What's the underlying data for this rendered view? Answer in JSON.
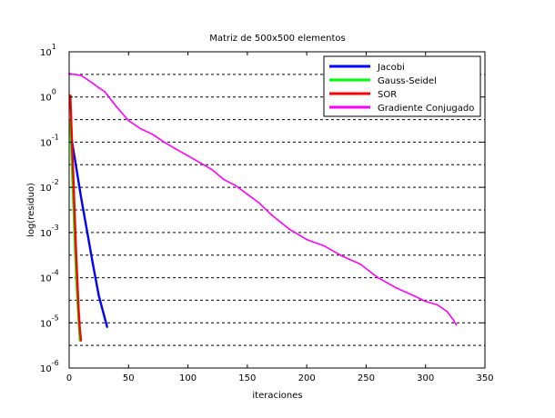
{
  "chart_data": {
    "type": "line",
    "title": "Matriz de 500x500 elementos",
    "xlabel": "iteraciones",
    "ylabel": "log(residuo)",
    "xlim": [
      0,
      350
    ],
    "ylim_exponents": [
      -6,
      1
    ],
    "yscale": "log",
    "x_ticks": [
      {
        "value": 0,
        "label": "0"
      },
      {
        "value": 50,
        "label": "50"
      },
      {
        "value": 100,
        "label": "100"
      },
      {
        "value": 150,
        "label": "150"
      },
      {
        "value": 200,
        "label": "200"
      },
      {
        "value": 250,
        "label": "250"
      },
      {
        "value": 300,
        "label": "300"
      },
      {
        "value": 350,
        "label": "350"
      }
    ],
    "y_ticks": [
      {
        "exp": 1,
        "base": "10",
        "sup": "1"
      },
      {
        "exp": 0,
        "base": "10",
        "sup": "0"
      },
      {
        "exp": -1,
        "base": "10",
        "sup": "-1"
      },
      {
        "exp": -2,
        "base": "10",
        "sup": "-2"
      },
      {
        "exp": -3,
        "base": "10",
        "sup": "-3"
      },
      {
        "exp": -4,
        "base": "10",
        "sup": "-4"
      },
      {
        "exp": -5,
        "base": "10",
        "sup": "-5"
      },
      {
        "exp": -6,
        "base": "10",
        "sup": "-6"
      }
    ],
    "grid": "horizontal dashed at each decade and half-decade",
    "legend_position": "top-right",
    "series": [
      {
        "name": "Jacobi",
        "color": "#0000ff",
        "points": [
          [
            1,
            0.3
          ],
          [
            2,
            0.12
          ],
          [
            5,
            0.04
          ],
          [
            10,
            0.006
          ],
          [
            15,
            0.0011
          ],
          [
            20,
            0.0002
          ],
          [
            25,
            4e-05
          ],
          [
            32,
            8e-06
          ]
        ]
      },
      {
        "name": "Gauss-Seidel",
        "color": "#00ff00",
        "points": [
          [
            1,
            0.3
          ],
          [
            2,
            0.05
          ],
          [
            3,
            0.01
          ],
          [
            4,
            0.002
          ],
          [
            5,
            0.0004
          ],
          [
            6,
            0.0001
          ],
          [
            7,
            3e-05
          ],
          [
            8,
            1.2e-05
          ],
          [
            9,
            4e-06
          ]
        ]
      },
      {
        "name": "SOR",
        "color": "#ff0000",
        "points": [
          [
            1,
            1.1
          ],
          [
            2,
            0.2
          ],
          [
            3,
            0.04
          ],
          [
            4,
            0.008
          ],
          [
            5,
            0.0015
          ],
          [
            6,
            0.0003
          ],
          [
            7,
            8e-05
          ],
          [
            8,
            2e-05
          ],
          [
            9,
            7e-06
          ],
          [
            10,
            4e-06
          ]
        ]
      },
      {
        "name": "Gradiente Conjugado",
        "color": "#ff00ff",
        "points": [
          [
            0,
            3.3
          ],
          [
            10,
            3.0
          ],
          [
            20,
            2.0
          ],
          [
            25,
            1.6
          ],
          [
            30,
            1.3
          ],
          [
            40,
            0.6
          ],
          [
            50,
            0.3
          ],
          [
            60,
            0.2
          ],
          [
            70,
            0.15
          ],
          [
            80,
            0.1
          ],
          [
            90,
            0.07
          ],
          [
            100,
            0.05
          ],
          [
            120,
            0.025
          ],
          [
            130,
            0.015
          ],
          [
            140,
            0.011
          ],
          [
            150,
            0.007
          ],
          [
            160,
            0.0045
          ],
          [
            170,
            0.0025
          ],
          [
            185,
            0.0012
          ],
          [
            200,
            0.0007
          ],
          [
            215,
            0.0005
          ],
          [
            230,
            0.0003
          ],
          [
            245,
            0.0002
          ],
          [
            260,
            0.0001
          ],
          [
            275,
            6e-05
          ],
          [
            290,
            4e-05
          ],
          [
            300,
            3e-05
          ],
          [
            310,
            2.5e-05
          ],
          [
            318,
            1.8e-05
          ],
          [
            323,
            1.2e-05
          ],
          [
            326,
            9e-06
          ]
        ]
      }
    ]
  }
}
